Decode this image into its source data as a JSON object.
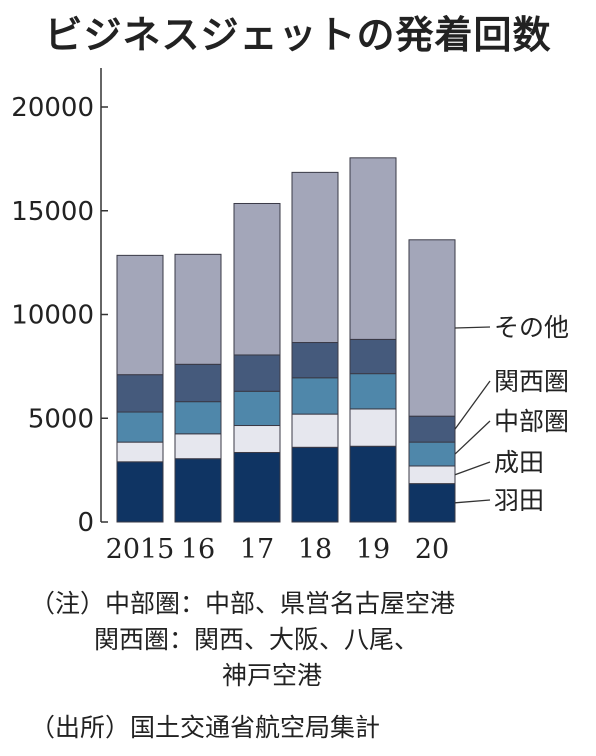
{
  "title": "ビジネスジェットの発着回数",
  "chart_data": {
    "type": "bar",
    "stacked": true,
    "title": "ビジネスジェットの発着回数",
    "categories": [
      "2015",
      "16",
      "17",
      "18",
      "19",
      "20"
    ],
    "ylim": [
      0,
      20000
    ],
    "yticks": [
      0,
      5000,
      10000,
      15000,
      20000
    ],
    "legend_position": "right, inline labels",
    "series": [
      {
        "name": "羽田",
        "color": "#0f3463",
        "values": [
          2900,
          3050,
          3350,
          3600,
          3650,
          1850
        ]
      },
      {
        "name": "成田",
        "color": "#e6e7ee",
        "values": [
          950,
          1200,
          1300,
          1600,
          1800,
          850
        ]
      },
      {
        "name": "中部圏",
        "color": "#4f87aa",
        "values": [
          1450,
          1550,
          1650,
          1750,
          1700,
          1150
        ]
      },
      {
        "name": "関西圏",
        "color": "#455a7c",
        "values": [
          1800,
          1800,
          1750,
          1700,
          1650,
          1250
        ]
      },
      {
        "name": "その他",
        "color": "#a3a6b9",
        "values": [
          5750,
          5300,
          7300,
          8200,
          8750,
          8500
        ]
      }
    ]
  },
  "notes": [
    "（注）中部圏：中部、県営名古屋空港",
    "関西圏：関西、大阪、八尾、",
    "神戸空港",
    "（出所）国土交通省航空局集計"
  ]
}
